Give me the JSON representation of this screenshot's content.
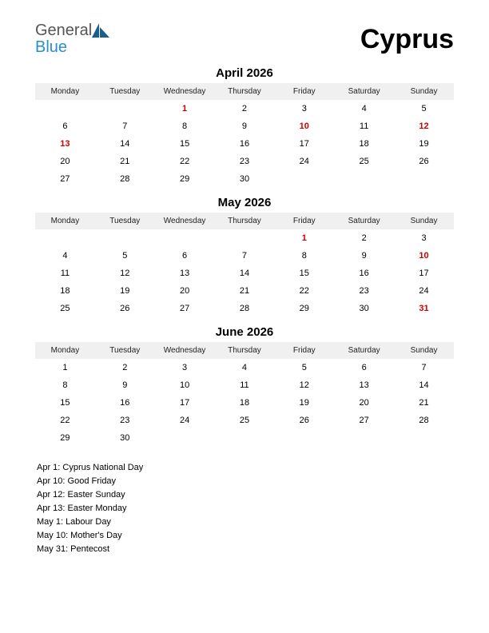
{
  "logo": {
    "word1": "General",
    "word2": "Blue",
    "word1_color": "#555555",
    "word2_color": "#2a8fc9",
    "glyph_color": "#1a5d8f"
  },
  "title": "Cyprus",
  "colors": {
    "background": "#ffffff",
    "header_bg": "#f0f0f0",
    "text": "#000000",
    "holiday": "#cc0000"
  },
  "weekdays": [
    "Monday",
    "Tuesday",
    "Wednesday",
    "Thursday",
    "Friday",
    "Saturday",
    "Sunday"
  ],
  "months": [
    {
      "title": "April 2026",
      "weeks": [
        [
          null,
          null,
          {
            "d": 1,
            "h": true
          },
          {
            "d": 2
          },
          {
            "d": 3
          },
          {
            "d": 4
          },
          {
            "d": 5
          }
        ],
        [
          {
            "d": 6
          },
          {
            "d": 7
          },
          {
            "d": 8
          },
          {
            "d": 9
          },
          {
            "d": 10,
            "h": true
          },
          {
            "d": 11
          },
          {
            "d": 12,
            "h": true
          }
        ],
        [
          {
            "d": 13,
            "h": true
          },
          {
            "d": 14
          },
          {
            "d": 15
          },
          {
            "d": 16
          },
          {
            "d": 17
          },
          {
            "d": 18
          },
          {
            "d": 19
          }
        ],
        [
          {
            "d": 20
          },
          {
            "d": 21
          },
          {
            "d": 22
          },
          {
            "d": 23
          },
          {
            "d": 24
          },
          {
            "d": 25
          },
          {
            "d": 26
          }
        ],
        [
          {
            "d": 27
          },
          {
            "d": 28
          },
          {
            "d": 29
          },
          {
            "d": 30
          },
          null,
          null,
          null
        ]
      ]
    },
    {
      "title": "May 2026",
      "weeks": [
        [
          null,
          null,
          null,
          null,
          {
            "d": 1,
            "h": true
          },
          {
            "d": 2
          },
          {
            "d": 3
          }
        ],
        [
          {
            "d": 4
          },
          {
            "d": 5
          },
          {
            "d": 6
          },
          {
            "d": 7
          },
          {
            "d": 8
          },
          {
            "d": 9
          },
          {
            "d": 10,
            "h": true
          }
        ],
        [
          {
            "d": 11
          },
          {
            "d": 12
          },
          {
            "d": 13
          },
          {
            "d": 14
          },
          {
            "d": 15
          },
          {
            "d": 16
          },
          {
            "d": 17
          }
        ],
        [
          {
            "d": 18
          },
          {
            "d": 19
          },
          {
            "d": 20
          },
          {
            "d": 21
          },
          {
            "d": 22
          },
          {
            "d": 23
          },
          {
            "d": 24
          }
        ],
        [
          {
            "d": 25
          },
          {
            "d": 26
          },
          {
            "d": 27
          },
          {
            "d": 28
          },
          {
            "d": 29
          },
          {
            "d": 30
          },
          {
            "d": 31,
            "h": true
          }
        ]
      ]
    },
    {
      "title": "June 2026",
      "weeks": [
        [
          {
            "d": 1
          },
          {
            "d": 2
          },
          {
            "d": 3
          },
          {
            "d": 4
          },
          {
            "d": 5
          },
          {
            "d": 6
          },
          {
            "d": 7
          }
        ],
        [
          {
            "d": 8
          },
          {
            "d": 9
          },
          {
            "d": 10
          },
          {
            "d": 11
          },
          {
            "d": 12
          },
          {
            "d": 13
          },
          {
            "d": 14
          }
        ],
        [
          {
            "d": 15
          },
          {
            "d": 16
          },
          {
            "d": 17
          },
          {
            "d": 18
          },
          {
            "d": 19
          },
          {
            "d": 20
          },
          {
            "d": 21
          }
        ],
        [
          {
            "d": 22
          },
          {
            "d": 23
          },
          {
            "d": 24
          },
          {
            "d": 25
          },
          {
            "d": 26
          },
          {
            "d": 27
          },
          {
            "d": 28
          }
        ],
        [
          {
            "d": 29
          },
          {
            "d": 30
          },
          null,
          null,
          null,
          null,
          null
        ]
      ]
    }
  ],
  "holidays": [
    "Apr 1: Cyprus National Day",
    "Apr 10: Good Friday",
    "Apr 12: Easter Sunday",
    "Apr 13: Easter Monday",
    "May 1: Labour Day",
    "May 10: Mother's Day",
    "May 31: Pentecost"
  ]
}
